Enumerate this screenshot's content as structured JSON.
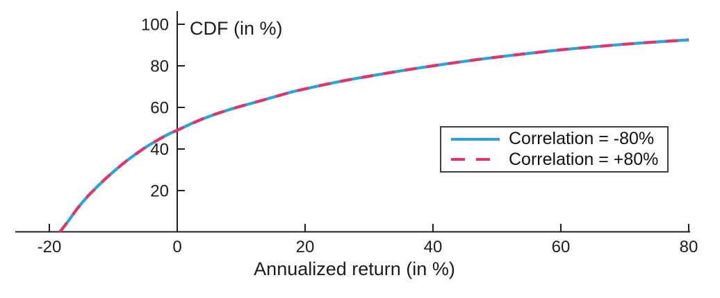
{
  "chart_data": {
    "type": "line",
    "title": "CDF (in %)",
    "xlabel": "Annualized return (in %)",
    "ylabel": "CDF (in %)",
    "xlim": [
      -25,
      80
    ],
    "ylim": [
      0,
      106
    ],
    "grid": false,
    "legend_position": "center-right",
    "axis_color": "#1f1f1f",
    "x_ticks": [
      -20,
      0,
      20,
      40,
      60,
      80
    ],
    "x_tick_labels": [
      "-20",
      "0",
      "20",
      "40",
      "60",
      "80"
    ],
    "y_ticks": [
      20,
      40,
      60,
      80,
      100
    ],
    "y_tick_labels": [
      "20",
      "40",
      "60",
      "80",
      "100"
    ],
    "x": [
      -18.4,
      -18,
      -17,
      -16,
      -15,
      -14,
      -13,
      -12,
      -11,
      -10,
      -9,
      -8,
      -7,
      -6,
      -5,
      -4,
      -3,
      -2,
      -1,
      0,
      2,
      4,
      6,
      8,
      10,
      12,
      15,
      18,
      20,
      25,
      30,
      35,
      40,
      45,
      50,
      55,
      60,
      65,
      70,
      75,
      80
    ],
    "series": [
      {
        "name": "Correlation = -80%",
        "color": "#28A3DC",
        "style": "solid",
        "values": [
          0,
          1.5,
          5.5,
          9.8,
          13.7,
          17.2,
          20.4,
          23.4,
          26.3,
          29,
          31.6,
          34.1,
          36.4,
          38.6,
          40.7,
          42.6,
          44.4,
          46.1,
          47.7,
          49,
          51.9,
          54.5,
          56.8,
          58.8,
          60.6,
          62.3,
          64.9,
          67.5,
          68.9,
          72.2,
          75,
          77.6,
          80,
          82.2,
          84.2,
          86,
          87.7,
          89.1,
          90.4,
          91.5,
          92.5
        ]
      },
      {
        "name": "Correlation = +80%",
        "color": "#E4336B",
        "style": "dashed",
        "values": [
          0,
          1.5,
          5.5,
          9.8,
          13.7,
          17.2,
          20.4,
          23.4,
          26.3,
          29,
          31.6,
          34.1,
          36.4,
          38.6,
          40.7,
          42.6,
          44.4,
          46.1,
          47.7,
          49,
          51.9,
          54.5,
          56.8,
          58.8,
          60.6,
          62.3,
          64.9,
          67.5,
          68.9,
          72.2,
          75,
          77.6,
          80,
          82.2,
          84.2,
          86,
          87.7,
          89.1,
          90.4,
          91.5,
          92.5
        ]
      }
    ]
  }
}
